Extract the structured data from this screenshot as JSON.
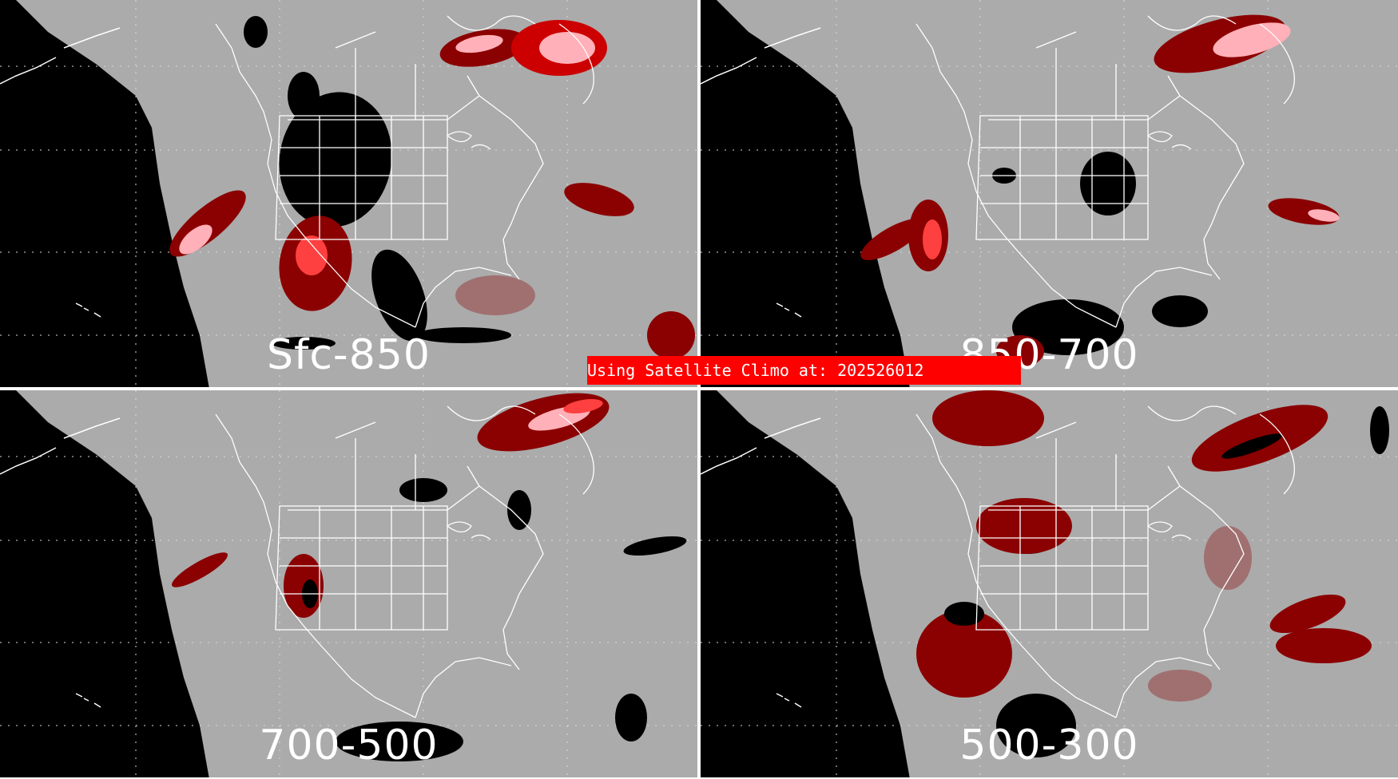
{
  "colors": {
    "background_gray": "#ababab",
    "ocean_black": "#000000",
    "dark_red": "#8b0000",
    "red": "#cc0000",
    "light_red": "#ff4040",
    "pink": "#ffb0b8",
    "brown_gray": "#a07070",
    "border_white": "#ffffff",
    "banner_red": "#ff0000"
  },
  "banner": {
    "text": "Using Satellite Climo at: 202526012"
  },
  "panels": [
    {
      "id": "sfc-850",
      "label": "Sfc-850"
    },
    {
      "id": "850-700",
      "label": "850-700"
    },
    {
      "id": "700-500",
      "label": "700-500"
    },
    {
      "id": "500-300",
      "label": "500-300"
    }
  ]
}
